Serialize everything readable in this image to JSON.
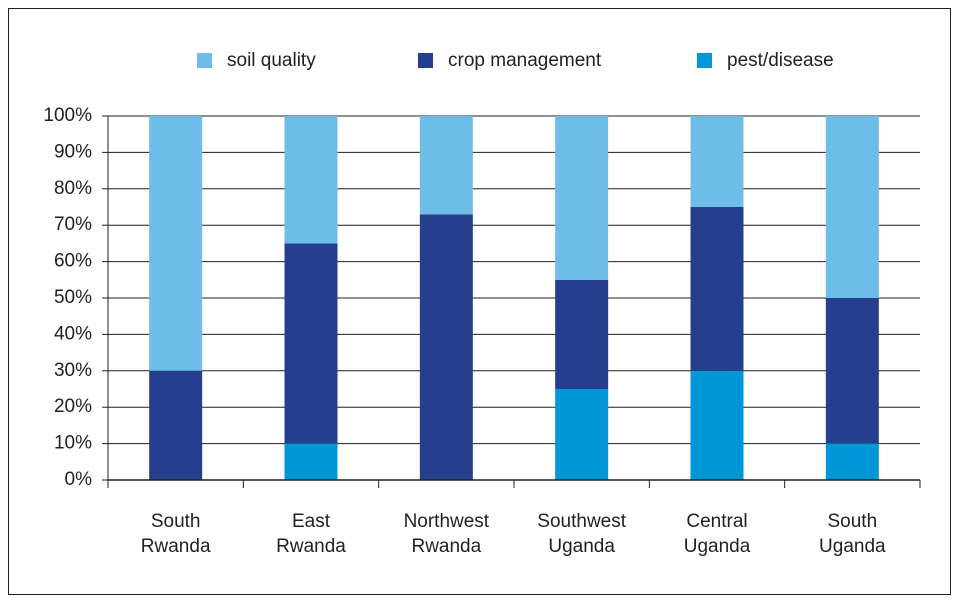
{
  "chart_data": {
    "type": "stacked_bar",
    "categories": [
      [
        "South",
        "Rwanda"
      ],
      [
        "East",
        "Rwanda"
      ],
      [
        "Northwest",
        "Rwanda"
      ],
      [
        "Southwest",
        "Uganda"
      ],
      [
        "Central",
        "Uganda"
      ],
      [
        "South",
        "Uganda"
      ]
    ],
    "series": [
      {
        "name": "soil quality",
        "color": "#6dbde8",
        "values": [
          70,
          35,
          27,
          45,
          25,
          50
        ]
      },
      {
        "name": "crop management",
        "color": "#253f8e",
        "values": [
          30,
          55,
          73,
          30,
          45,
          40
        ]
      },
      {
        "name": "pest/disease",
        "color": "#0097d8",
        "values": [
          0,
          10,
          0,
          25,
          30,
          10
        ]
      }
    ],
    "ylim": [
      0,
      100
    ],
    "yticks": [
      {
        "value": 0,
        "label": "0%"
      },
      {
        "value": 10,
        "label": "10%"
      },
      {
        "value": 20,
        "label": "20%"
      },
      {
        "value": 30,
        "label": "30%"
      },
      {
        "value": 40,
        "label": "40%"
      },
      {
        "value": 50,
        "label": "50%"
      },
      {
        "value": 60,
        "label": "60%"
      },
      {
        "value": 70,
        "label": "70%"
      },
      {
        "value": 80,
        "label": "80%"
      },
      {
        "value": 90,
        "label": "90%"
      },
      {
        "value": 100,
        "label": "100%"
      }
    ],
    "grid": true,
    "legend": "top"
  }
}
